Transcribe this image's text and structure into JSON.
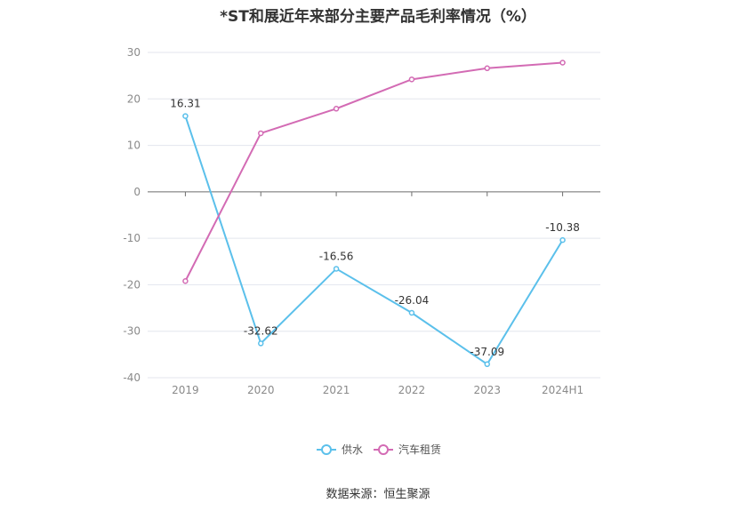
{
  "title": "*ST和展近年来部分主要产品毛利率情况（%）",
  "source": "数据来源：恒生聚源",
  "chart_data": {
    "type": "line",
    "title": "*ST和展近年来部分主要产品毛利率情况（%）",
    "categories": [
      "2019",
      "2020",
      "2021",
      "2022",
      "2023",
      "2024H1"
    ],
    "ylim": [
      -40,
      30
    ],
    "yticks": [
      "30",
      "20",
      "10",
      "0",
      "-10",
      "-20",
      "-30",
      "-40"
    ],
    "grid": true,
    "legend_position": "bottom-center",
    "series": [
      {
        "name": "供水",
        "color": "#5bc0eb",
        "values": [
          16.31,
          -32.62,
          -16.56,
          -26.04,
          -37.09,
          -10.38
        ],
        "labels": [
          "16.31",
          "-32.62",
          "-16.56",
          "-26.04",
          "-37.09",
          "-10.38"
        ]
      },
      {
        "name": "汽车租赁",
        "color": "#d36bb4",
        "values": [
          -19.2,
          12.6,
          17.9,
          24.2,
          26.6,
          27.8
        ]
      }
    ]
  }
}
